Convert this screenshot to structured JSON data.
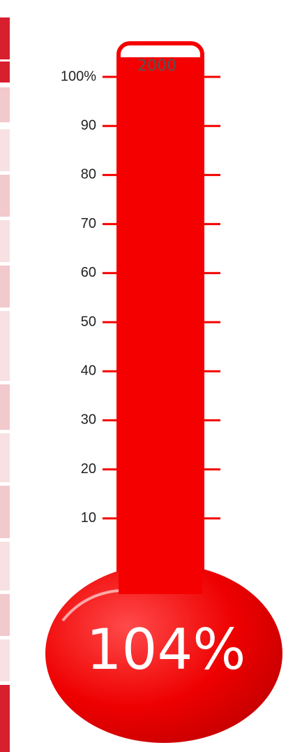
{
  "chart_data": {
    "type": "thermometer",
    "goal": 2000,
    "values": [
      104
    ],
    "value_labels": [
      "104%"
    ],
    "color": "#f50000",
    "ylim": [
      0,
      100
    ],
    "yticks": [
      {
        "value": 100,
        "label": "100%"
      },
      90,
      80,
      70,
      60,
      50,
      40,
      30,
      20,
      10
    ]
  }
}
